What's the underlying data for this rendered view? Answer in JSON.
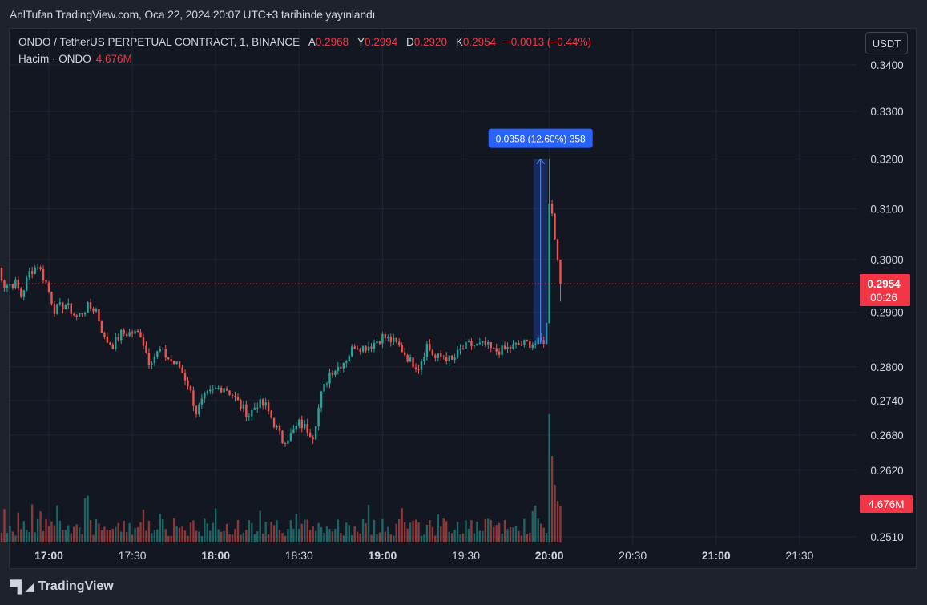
{
  "header": {
    "published_line": "AnlTufan TradingView.com, Oca 22, 2024 20:07 UTC+3 tarihinde yayınlandı"
  },
  "legend": {
    "symbol": "ONDO / TetherUS PERPETUAL CONTRACT, 1, BINANCE",
    "open_label": "A",
    "open_value": "0.2968",
    "high_label": "Y",
    "high_value": "0.2994",
    "low_label": "D",
    "low_value": "0.2920",
    "close_label": "K",
    "close_value": "0.2954",
    "change": "−0.0013 (−0.44%)",
    "volume_label": "Hacim · ONDO",
    "volume_value": "4.676M"
  },
  "currency_button": "USDT",
  "last_price_badge": {
    "price": "0.2954",
    "countdown": "00:26"
  },
  "volume_badge": "4.676M",
  "measure_label": "0.0358 (12.60%) 358",
  "footer": {
    "brand": "TradingView"
  },
  "colors": {
    "up": "#26a69a",
    "down": "#ef5350",
    "background": "#131722",
    "measure": "#2962ff"
  },
  "chart_data": {
    "type": "candlestick",
    "interval": "1m",
    "price_axis_ticks": [
      "0.3400",
      "0.3300",
      "0.3200",
      "0.3100",
      "0.3000",
      "0.2900",
      "0.2800",
      "0.2740",
      "0.2680",
      "0.2620",
      "0.2510"
    ],
    "price_axis_log": true,
    "time_axis_ticks": [
      "17:00",
      "17:30",
      "18:00",
      "18:30",
      "19:00",
      "19:30",
      "20:00",
      "20:30",
      "21:00",
      "21:30"
    ],
    "time_range": [
      "16:41",
      "22:00"
    ],
    "last_price": 0.2954,
    "measure": {
      "from_price": 0.2842,
      "to_price": 0.32,
      "from_time": "19:54",
      "to_time": "20:00"
    },
    "anchors": [
      [
        "16:41",
        0.3
      ],
      [
        "16:44",
        0.295
      ],
      [
        "16:48",
        0.2955
      ],
      [
        "16:50",
        0.293
      ],
      [
        "16:53",
        0.2975
      ],
      [
        "16:56",
        0.299
      ],
      [
        "16:59",
        0.2955
      ],
      [
        "17:02",
        0.2905
      ],
      [
        "17:06",
        0.2915
      ],
      [
        "17:10",
        0.289
      ],
      [
        "17:14",
        0.291
      ],
      [
        "17:17",
        0.2905
      ],
      [
        "17:20",
        0.285
      ],
      [
        "17:23",
        0.284
      ],
      [
        "17:26",
        0.286
      ],
      [
        "17:30",
        0.2862
      ],
      [
        "17:33",
        0.286
      ],
      [
        "17:36",
        0.281
      ],
      [
        "17:40",
        0.283
      ],
      [
        "17:44",
        0.281
      ],
      [
        "17:47",
        0.28
      ],
      [
        "17:50",
        0.277
      ],
      [
        "17:53",
        0.272
      ],
      [
        "17:56",
        0.2745
      ],
      [
        "18:00",
        0.276
      ],
      [
        "18:03",
        0.2765
      ],
      [
        "18:06",
        0.275
      ],
      [
        "18:09",
        0.273
      ],
      [
        "18:12",
        0.2715
      ],
      [
        "18:15",
        0.2735
      ],
      [
        "18:18",
        0.273
      ],
      [
        "18:21",
        0.27
      ],
      [
        "18:24",
        0.267
      ],
      [
        "18:27",
        0.268
      ],
      [
        "18:30",
        0.27
      ],
      [
        "18:33",
        0.269
      ],
      [
        "18:35",
        0.268
      ],
      [
        "18:38",
        0.275
      ],
      [
        "18:41",
        0.279
      ],
      [
        "18:44",
        0.28
      ],
      [
        "18:47",
        0.2815
      ],
      [
        "18:50",
        0.284
      ],
      [
        "18:53",
        0.2835
      ],
      [
        "18:56",
        0.284
      ],
      [
        "19:00",
        0.2855
      ],
      [
        "19:03",
        0.2848
      ],
      [
        "19:06",
        0.2838
      ],
      [
        "19:10",
        0.281
      ],
      [
        "19:13",
        0.28
      ],
      [
        "19:16",
        0.284
      ],
      [
        "19:19",
        0.2815
      ],
      [
        "19:22",
        0.282
      ],
      [
        "19:25",
        0.281
      ],
      [
        "19:28",
        0.283
      ],
      [
        "19:31",
        0.284
      ],
      [
        "19:34",
        0.2838
      ],
      [
        "19:37",
        0.284
      ],
      [
        "19:40",
        0.2828
      ],
      [
        "19:43",
        0.283
      ],
      [
        "19:46",
        0.2835
      ],
      [
        "19:49",
        0.284
      ],
      [
        "19:52",
        0.2843
      ],
      [
        "19:55",
        0.2842
      ],
      [
        "19:58",
        0.2848
      ],
      [
        "19:59",
        0.288
      ],
      [
        "20:00",
        0.311
      ],
      [
        "20:01",
        0.309
      ],
      [
        "20:02",
        0.304
      ],
      [
        "20:03",
        0.3
      ],
      [
        "20:04",
        0.2954
      ]
    ]
  }
}
